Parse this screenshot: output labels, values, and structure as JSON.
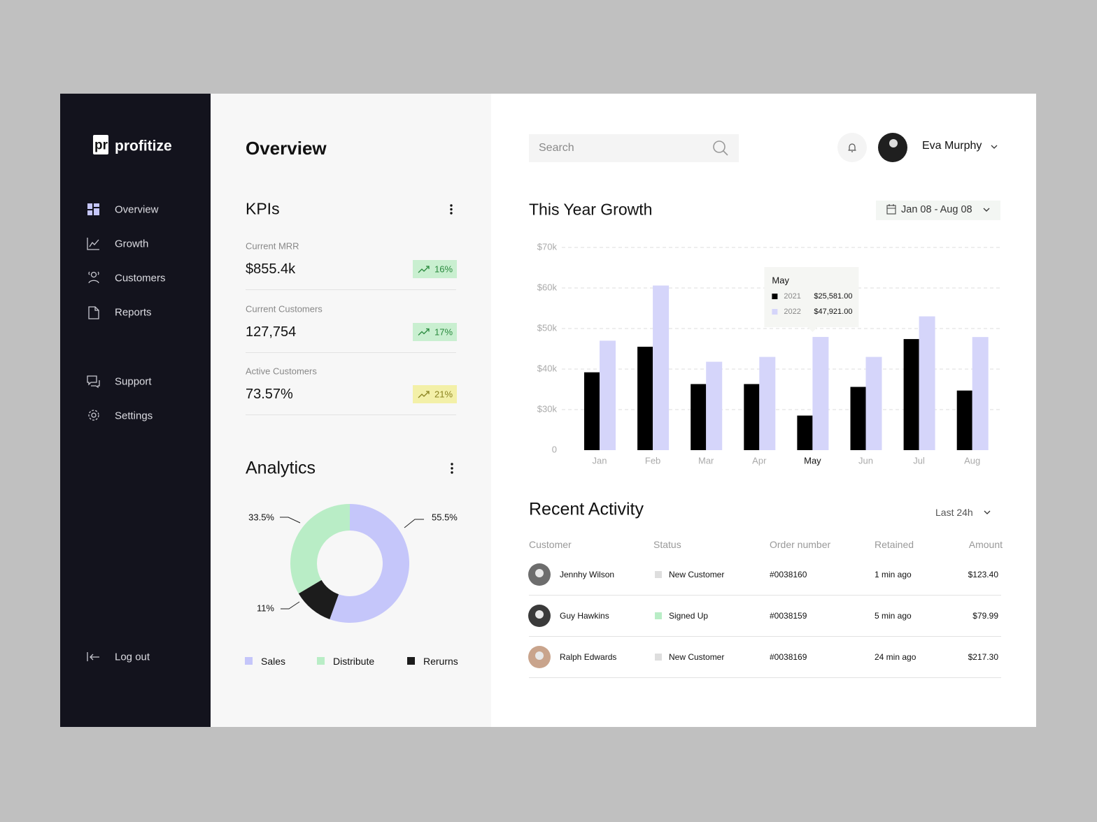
{
  "sidebar": {
    "logo_mark": "pr",
    "brand": "profitize",
    "nav": [
      "Overview",
      "Growth",
      "Customers",
      "Reports"
    ],
    "nav_secondary": [
      "Support",
      "Settings"
    ],
    "logout": "Log out"
  },
  "overview": {
    "title": "Overview",
    "kpis": {
      "title": "KPIs",
      "items": [
        {
          "label": "Current MRR",
          "value": "$855.4k",
          "change": "16%"
        },
        {
          "label": "Current Customers",
          "value": "127,754",
          "change": "17%"
        },
        {
          "label": "Active Customers",
          "value": "73.57%",
          "change": "21%"
        }
      ]
    }
  },
  "header": {
    "search_placeholder": "Search",
    "user_name": "Eva Murphy"
  },
  "chart_data": [
    {
      "type": "bar",
      "title": "This Year Growth",
      "date_range": "Jan 08 - Aug 08",
      "categories": [
        "Jan",
        "Feb",
        "Mar",
        "Apr",
        "May",
        "Jun",
        "Jul",
        "Aug"
      ],
      "series": [
        {
          "name": "2021",
          "color": "#000000",
          "values": [
            39200,
            45500,
            36300,
            36300,
            25581,
            35600,
            47400,
            34700
          ],
          "value_labels": [
            null,
            null,
            null,
            null,
            "$25,581.00",
            null,
            null,
            null
          ]
        },
        {
          "name": "2022",
          "color": "#d5d5fa",
          "values": [
            47000,
            60600,
            41800,
            43000,
            47921,
            43000,
            53000,
            47900
          ],
          "value_labels": [
            null,
            null,
            null,
            null,
            "$47,921.00",
            null,
            null,
            null
          ]
        }
      ],
      "ylim": [
        0,
        70000
      ],
      "yticks": [
        0,
        {
          "value": 30000,
          "label": "$30k"
        },
        {
          "value": 40000,
          "label": "$40k"
        },
        {
          "value": 50000,
          "label": "$50k"
        },
        {
          "value": 60000,
          "label": "$60k"
        },
        {
          "value": 70000,
          "label": "$70k"
        }
      ],
      "grid": true
    },
    {
      "type": "donut",
      "title": "Analytics",
      "categories": [
        "Sales",
        "Distribute",
        "Rerurns"
      ],
      "values": [
        55.5,
        33.5,
        11
      ],
      "value_labels": [
        "55.5%",
        "33.5%",
        "11%"
      ],
      "colors": [
        "#c5c6fa",
        "#b9edc6",
        "#1c1c1c"
      ]
    }
  ],
  "activity": {
    "title": "Recent Activity",
    "filter": "Last 24h",
    "columns": [
      "Customer",
      "Status",
      "Order number",
      "Retained",
      "Amount"
    ],
    "rows": [
      [
        "Jennhy Wilson",
        "New Customer",
        "#0038160",
        "1 min ago",
        "$123.40"
      ],
      [
        "Guy Hawkins",
        "Signed Up",
        "#0038159",
        "5 min ago",
        "$79.99"
      ],
      [
        "Ralph Edwards",
        "New Customer",
        "#0038169",
        "24 min ago",
        "$217.30"
      ]
    ]
  }
}
